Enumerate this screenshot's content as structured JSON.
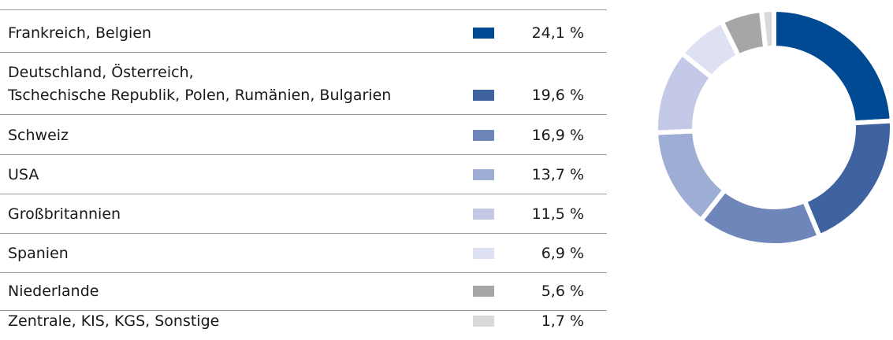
{
  "chart_data": {
    "type": "donut",
    "categories": [
      "Frankreich, Belgien",
      "Deutschland, Österreich,\nTschechische Republik, Polen, Rumänien, Bulgarien",
      "Schweiz",
      "USA",
      "Großbritannien",
      "Spanien",
      "Niederlande",
      "Zentrale, KIS, KGS, Sonstige"
    ],
    "values": [
      24.1,
      19.6,
      16.9,
      13.7,
      11.5,
      6.9,
      5.6,
      1.7
    ],
    "value_labels": [
      "24,1 %",
      "19,6 %",
      "16,9 %",
      "13,7 %",
      "11,5 %",
      "6,9 %",
      "5,6 %",
      "1,7 %"
    ],
    "colors": [
      "#004a93",
      "#3f63a0",
      "#6f86bb",
      "#9eadd4",
      "#c3c9e7",
      "#dde1f2",
      "#a6a6a6",
      "#d9d9d9"
    ]
  }
}
